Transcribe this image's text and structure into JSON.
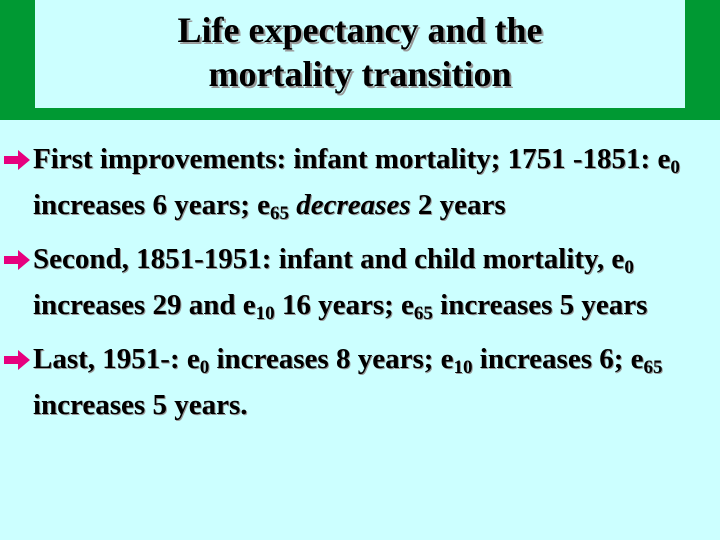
{
  "title": [
    "Life expectancy and the",
    "mortality transition"
  ],
  "bullets": [
    [
      {
        "text": "First improvements:  infant mortality; 1751 -1851:  e"
      },
      {
        "sub": "0"
      },
      {
        "text": " increases 6 years; e"
      },
      {
        "sub": "65"
      },
      {
        "text": " "
      },
      {
        "em": "decreases"
      },
      {
        "text": " 2 years"
      }
    ],
    [
      {
        "text": "Second, 1851-1951:  infant and child mortality, e"
      },
      {
        "sub": "0"
      },
      {
        "text": " increases 29 and e"
      },
      {
        "sub": "10"
      },
      {
        "text": " 16 years; e"
      },
      {
        "sub": "65"
      },
      {
        "text": " increases 5 years"
      }
    ],
    [
      {
        "text": "Last, 1951-:  e"
      },
      {
        "sub": "0"
      },
      {
        "text": " increases 8 years; e"
      },
      {
        "sub": "10"
      },
      {
        "text": " increases 6; e"
      },
      {
        "sub": "65"
      },
      {
        "text": " increases 5 years."
      }
    ]
  ]
}
